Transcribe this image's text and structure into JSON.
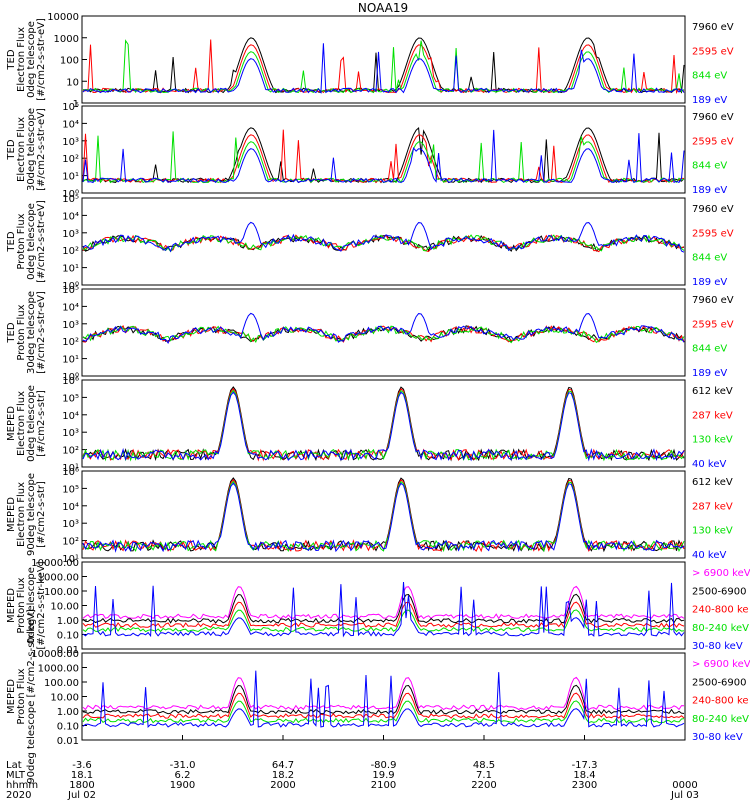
{
  "title": "NOAA19",
  "colors": {
    "black": "#000000",
    "red": "#ff0000",
    "green": "#00e000",
    "blue": "#0000ff",
    "magenta": "#ff00ff",
    "axis": "#000000",
    "background": "#ffffff"
  },
  "chart_data": [
    {
      "type": "line",
      "panel": "ted-electron-0deg",
      "ylabel": [
        "TED",
        "Electron Flux",
        "0deg telescope",
        "[#/cm2-s-str-eV]"
      ],
      "yscale": "log",
      "ylim": [
        1,
        10000
      ],
      "yticks": [
        "1",
        "10",
        "100",
        "1000",
        "10000"
      ],
      "series": [
        {
          "name": "7960 eV",
          "color": "black"
        },
        {
          "name": "2595 eV",
          "color": "red"
        },
        {
          "name": "844 eV",
          "color": "green"
        },
        {
          "name": "189 eV",
          "color": "blue"
        }
      ]
    },
    {
      "type": "line",
      "panel": "ted-electron-30deg",
      "ylabel": [
        "TED",
        "Electron Flux",
        "30deg telescope",
        "[#/cm2-s-str-eV]"
      ],
      "yscale": "log",
      "ylim": [
        1,
        100000
      ],
      "yticks": [
        "10⁰",
        "10¹",
        "10²",
        "10³",
        "10⁴",
        "10⁵"
      ],
      "series": [
        {
          "name": "7960 eV",
          "color": "black"
        },
        {
          "name": "2595 eV",
          "color": "red"
        },
        {
          "name": "844 eV",
          "color": "green"
        },
        {
          "name": "189 eV",
          "color": "blue"
        }
      ]
    },
    {
      "type": "line",
      "panel": "ted-proton-0deg",
      "ylabel": [
        "TED",
        "Proton Flux",
        "0deg telescope",
        "[#/cm2-s-str-eV]"
      ],
      "yscale": "log",
      "ylim": [
        1,
        100000
      ],
      "yticks": [
        "10⁰",
        "10¹",
        "10²",
        "10³",
        "10⁴",
        "10⁵"
      ],
      "series": [
        {
          "name": "7960 eV",
          "color": "black"
        },
        {
          "name": "2595 eV",
          "color": "red"
        },
        {
          "name": "844 eV",
          "color": "green"
        },
        {
          "name": "189 eV",
          "color": "blue"
        }
      ]
    },
    {
      "type": "line",
      "panel": "ted-proton-30deg",
      "ylabel": [
        "TED",
        "Proton Flux",
        "30deg telescope",
        "[#/cm2-s-str-eV]"
      ],
      "yscale": "log",
      "ylim": [
        1,
        100000
      ],
      "yticks": [
        "10⁰",
        "10¹",
        "10²",
        "10³",
        "10⁴",
        "10⁵"
      ],
      "series": [
        {
          "name": "7960 eV",
          "color": "black"
        },
        {
          "name": "2595 eV",
          "color": "red"
        },
        {
          "name": "844 eV",
          "color": "green"
        },
        {
          "name": "189 eV",
          "color": "blue"
        }
      ]
    },
    {
      "type": "line",
      "panel": "meped-electron-0deg",
      "ylabel": [
        "MEPED",
        "Electron Flux",
        "0deg telescope",
        "[#/cm2-s-str]"
      ],
      "yscale": "log",
      "ylim": [
        10,
        1000000
      ],
      "yticks": [
        "10¹",
        "10²",
        "10³",
        "10⁴",
        "10⁵",
        "10⁶"
      ],
      "series": [
        {
          "name": "612 keV",
          "color": "black"
        },
        {
          "name": "287 keV",
          "color": "red"
        },
        {
          "name": "130 keV",
          "color": "green"
        },
        {
          "name": "40 keV",
          "color": "blue"
        }
      ]
    },
    {
      "type": "line",
      "panel": "meped-electron-90deg",
      "ylabel": [
        "MEPED",
        "Electron Flux",
        "90deg telescope",
        "[#/cm2-s-str]"
      ],
      "yscale": "log",
      "ylim": [
        10,
        1000000
      ],
      "yticks": [
        "10¹",
        "10²",
        "10³",
        "10⁴",
        "10⁵",
        "10⁶"
      ],
      "series": [
        {
          "name": "612 keV",
          "color": "black"
        },
        {
          "name": "287 keV",
          "color": "red"
        },
        {
          "name": "130 keV",
          "color": "green"
        },
        {
          "name": "40 keV",
          "color": "blue"
        }
      ]
    },
    {
      "type": "line",
      "panel": "meped-proton-0deg",
      "ylabel": [
        "MEPED",
        "Proton Flux",
        "0deg telescope",
        "[#/cm2-s-str-keV]"
      ],
      "yscale": "log",
      "ylim": [
        0.01,
        10000
      ],
      "yticks": [
        "0.01",
        "0.10",
        "1.00",
        "10.00",
        "100.00",
        "1000.00",
        "10000.00"
      ],
      "series": [
        {
          "name": "> 6900 keV",
          "color": "magenta"
        },
        {
          "name": "2500-6900",
          "color": "black"
        },
        {
          "name": "240-800 ke",
          "color": "red"
        },
        {
          "name": "80-240 keV",
          "color": "green"
        },
        {
          "name": "30-80 keV",
          "color": "blue"
        }
      ]
    },
    {
      "type": "line",
      "panel": "meped-proton-90deg",
      "ylabel": [
        "MEPED",
        "Proton Flux",
        "90deg telescope [#/cm2-s-str-keV]"
      ],
      "yscale": "log",
      "ylim": [
        0.01,
        10000
      ],
      "yticks": [
        "0.01",
        "0.10",
        "1.00",
        "10.00",
        "100.00",
        "1000.00",
        "10000.00"
      ],
      "series": [
        {
          "name": "> 6900 keV",
          "color": "magenta"
        },
        {
          "name": "2500-6900",
          "color": "black"
        },
        {
          "name": "240-800 ke",
          "color": "red"
        },
        {
          "name": "80-240 keV",
          "color": "green"
        },
        {
          "name": "30-80 keV",
          "color": "blue"
        }
      ]
    }
  ],
  "x_axis": {
    "row_labels": [
      "Lat",
      "MLT",
      "hhmm",
      "2020"
    ],
    "ticks": [
      {
        "lat": "-3.6",
        "mlt": "18.1",
        "hhmm": "1800",
        "date": "Jul 02"
      },
      {
        "lat": "-31.0",
        "mlt": "6.2",
        "hhmm": "1900",
        "date": ""
      },
      {
        "lat": "64.7",
        "mlt": "18.2",
        "hhmm": "2000",
        "date": ""
      },
      {
        "lat": "-80.9",
        "mlt": "19.9",
        "hhmm": "2100",
        "date": ""
      },
      {
        "lat": "48.5",
        "mlt": "7.1",
        "hhmm": "2200",
        "date": ""
      },
      {
        "lat": "-17.3",
        "mlt": "18.4",
        "hhmm": "2300",
        "date": ""
      },
      {
        "lat": "",
        "mlt": "",
        "hhmm": "0000",
        "date": "Jul 03"
      }
    ]
  }
}
